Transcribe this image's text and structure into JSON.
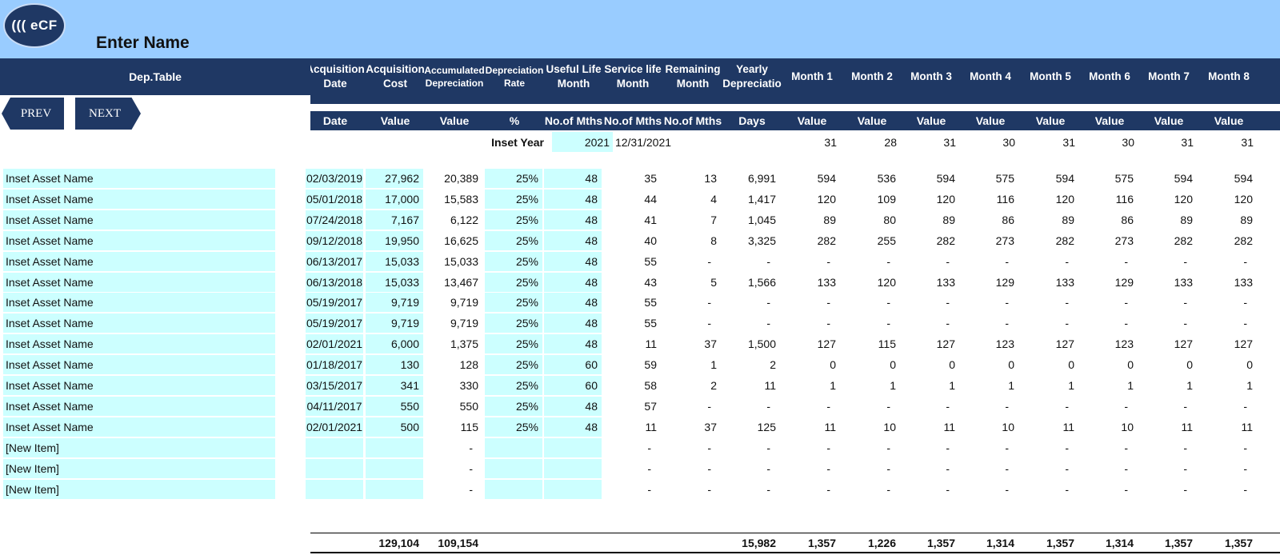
{
  "header": {
    "logo_text": "((( eCF",
    "company_name": "Enter Name",
    "table_title": "Dep.Table"
  },
  "nav": {
    "prev_label": "PREV",
    "next_label": "NEXT"
  },
  "columns": [
    {
      "l1": "Acquisition",
      "l2": "Date",
      "unit": "Date"
    },
    {
      "l1": "Acquisition",
      "l2": "Cost",
      "unit": "Value"
    },
    {
      "l1": "Accumulated",
      "l2": "Depreciation",
      "unit": "Value",
      "small": true
    },
    {
      "l1": "Depreciation",
      "l2": "Rate",
      "unit": "%",
      "small": true
    },
    {
      "l1": "Useful Life",
      "l2": "Month",
      "unit": "No.of Mths"
    },
    {
      "l1": "Service life",
      "l2": "Month",
      "unit": "No.of Mths"
    },
    {
      "l1": "Remaining",
      "l2": "Month",
      "unit": "No.of Mths"
    },
    {
      "l1": "Yearly",
      "l2": "Depreciatio",
      "unit": "Days"
    },
    {
      "l1": "Month 1",
      "l2": "",
      "unit": "Value"
    },
    {
      "l1": "Month 2",
      "l2": "",
      "unit": "Value"
    },
    {
      "l1": "Month 3",
      "l2": "",
      "unit": "Value"
    },
    {
      "l1": "Month 4",
      "l2": "",
      "unit": "Value"
    },
    {
      "l1": "Month 5",
      "l2": "",
      "unit": "Value"
    },
    {
      "l1": "Month 6",
      "l2": "",
      "unit": "Value"
    },
    {
      "l1": "Month 7",
      "l2": "",
      "unit": "Value"
    },
    {
      "l1": "Month 8",
      "l2": "",
      "unit": "Value"
    }
  ],
  "inset": {
    "label": "Inset Year",
    "year": "2021",
    "date": "12/31/2021",
    "month_days": [
      "31",
      "28",
      "31",
      "30",
      "31",
      "30",
      "31",
      "31"
    ]
  },
  "rows": [
    {
      "name": "Inset Asset Name",
      "date": "02/03/2019",
      "cost": "27,962",
      "accum": "20,389",
      "rate": "25%",
      "useful": "48",
      "service": "35",
      "remaining": "13",
      "yearly": "6,991",
      "months": [
        "594",
        "536",
        "594",
        "575",
        "594",
        "575",
        "594",
        "594"
      ]
    },
    {
      "name": "Inset Asset Name",
      "date": "05/01/2018",
      "cost": "17,000",
      "accum": "15,583",
      "rate": "25%",
      "useful": "48",
      "service": "44",
      "remaining": "4",
      "yearly": "1,417",
      "months": [
        "120",
        "109",
        "120",
        "116",
        "120",
        "116",
        "120",
        "120"
      ]
    },
    {
      "name": "Inset Asset Name",
      "date": "07/24/2018",
      "cost": "7,167",
      "accum": "6,122",
      "rate": "25%",
      "useful": "48",
      "service": "41",
      "remaining": "7",
      "yearly": "1,045",
      "months": [
        "89",
        "80",
        "89",
        "86",
        "89",
        "86",
        "89",
        "89"
      ]
    },
    {
      "name": "Inset Asset Name",
      "date": "09/12/2018",
      "cost": "19,950",
      "accum": "16,625",
      "rate": "25%",
      "useful": "48",
      "service": "40",
      "remaining": "8",
      "yearly": "3,325",
      "months": [
        "282",
        "255",
        "282",
        "273",
        "282",
        "273",
        "282",
        "282"
      ]
    },
    {
      "name": "Inset Asset Name",
      "date": "06/13/2017",
      "cost": "15,033",
      "accum": "15,033",
      "rate": "25%",
      "useful": "48",
      "service": "55",
      "remaining": "-",
      "yearly": "-",
      "months": [
        "-",
        "-",
        "-",
        "-",
        "-",
        "-",
        "-",
        "-"
      ]
    },
    {
      "name": "Inset Asset Name",
      "date": "06/13/2018",
      "cost": "15,033",
      "accum": "13,467",
      "rate": "25%",
      "useful": "48",
      "service": "43",
      "remaining": "5",
      "yearly": "1,566",
      "months": [
        "133",
        "120",
        "133",
        "129",
        "133",
        "129",
        "133",
        "133"
      ]
    },
    {
      "name": "Inset Asset Name",
      "date": "05/19/2017",
      "cost": "9,719",
      "accum": "9,719",
      "rate": "25%",
      "useful": "48",
      "service": "55",
      "remaining": "-",
      "yearly": "-",
      "months": [
        "-",
        "-",
        "-",
        "-",
        "-",
        "-",
        "-",
        "-"
      ]
    },
    {
      "name": "Inset Asset Name",
      "date": "05/19/2017",
      "cost": "9,719",
      "accum": "9,719",
      "rate": "25%",
      "useful": "48",
      "service": "55",
      "remaining": "-",
      "yearly": "-",
      "months": [
        "-",
        "-",
        "-",
        "-",
        "-",
        "-",
        "-",
        "-"
      ]
    },
    {
      "name": "Inset Asset Name",
      "date": "02/01/2021",
      "cost": "6,000",
      "accum": "1,375",
      "rate": "25%",
      "useful": "48",
      "service": "11",
      "remaining": "37",
      "yearly": "1,500",
      "months": [
        "127",
        "115",
        "127",
        "123",
        "127",
        "123",
        "127",
        "127"
      ]
    },
    {
      "name": "Inset Asset Name",
      "date": "01/18/2017",
      "cost": "130",
      "accum": "128",
      "rate": "25%",
      "useful": "60",
      "service": "59",
      "remaining": "1",
      "yearly": "2",
      "months": [
        "0",
        "0",
        "0",
        "0",
        "0",
        "0",
        "0",
        "0"
      ]
    },
    {
      "name": "Inset Asset Name",
      "date": "03/15/2017",
      "cost": "341",
      "accum": "330",
      "rate": "25%",
      "useful": "60",
      "service": "58",
      "remaining": "2",
      "yearly": "11",
      "months": [
        "1",
        "1",
        "1",
        "1",
        "1",
        "1",
        "1",
        "1"
      ]
    },
    {
      "name": "Inset Asset Name",
      "date": "04/11/2017",
      "cost": "550",
      "accum": "550",
      "rate": "25%",
      "useful": "48",
      "service": "57",
      "remaining": "-",
      "yearly": "-",
      "months": [
        "-",
        "-",
        "-",
        "-",
        "-",
        "-",
        "-",
        "-"
      ]
    },
    {
      "name": "Inset Asset Name",
      "date": "02/01/2021",
      "cost": "500",
      "accum": "115",
      "rate": "25%",
      "useful": "48",
      "service": "11",
      "remaining": "37",
      "yearly": "125",
      "months": [
        "11",
        "10",
        "11",
        "10",
        "11",
        "10",
        "11",
        "11"
      ]
    },
    {
      "name": "[New Item]",
      "date": "",
      "cost": "",
      "accum": "-",
      "rate": "",
      "useful": "",
      "service": "-",
      "remaining": "-",
      "yearly": "-",
      "months": [
        "-",
        "-",
        "-",
        "-",
        "-",
        "-",
        "-",
        "-"
      ]
    },
    {
      "name": "[New Item]",
      "date": "",
      "cost": "",
      "accum": "-",
      "rate": "",
      "useful": "",
      "service": "-",
      "remaining": "-",
      "yearly": "-",
      "months": [
        "-",
        "-",
        "-",
        "-",
        "-",
        "-",
        "-",
        "-"
      ]
    },
    {
      "name": "[New Item]",
      "date": "",
      "cost": "",
      "accum": "-",
      "rate": "",
      "useful": "",
      "service": "-",
      "remaining": "-",
      "yearly": "-",
      "months": [
        "-",
        "-",
        "-",
        "-",
        "-",
        "-",
        "-",
        "-"
      ]
    }
  ],
  "totals": {
    "cost": "129,104",
    "accum": "109,154",
    "yearly": "15,982",
    "months": [
      "1,357",
      "1,226",
      "1,357",
      "1,314",
      "1,357",
      "1,314",
      "1,357",
      "1,357"
    ]
  }
}
